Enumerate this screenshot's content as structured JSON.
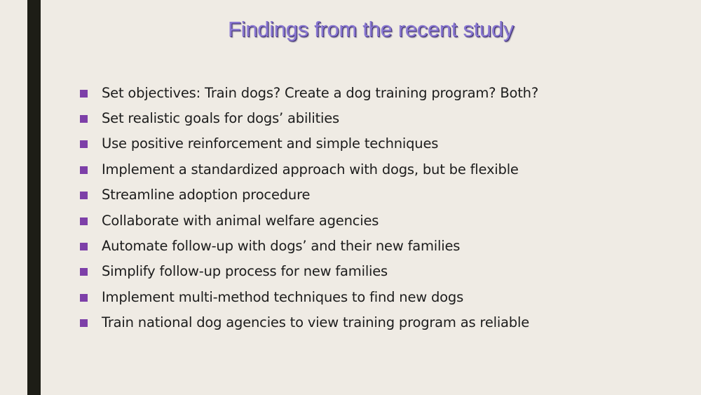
{
  "slide": {
    "title": "Findings from the recent study",
    "colors": {
      "background": "#efebe4",
      "left_bar": "#1d1d16",
      "title": "#8a78d2",
      "bullet_marker": "#7d3fa8",
      "text": "#1c1c1c"
    },
    "bullets": [
      "Set objectives: Train dogs? Create a dog training program? Both?",
      "Set realistic goals for dogs’ abilities",
      "Use positive reinforcement and simple techniques",
      "Implement a standardized approach with dogs, but be flexible",
      "Streamline adoption procedure",
      "Collaborate with animal welfare agencies",
      "Automate follow-up with dogs’ and their new families",
      "Simplify follow-up process for new families",
      "Implement multi-method techniques to find new dogs",
      "Train national dog agencies to view training program as reliable"
    ]
  }
}
